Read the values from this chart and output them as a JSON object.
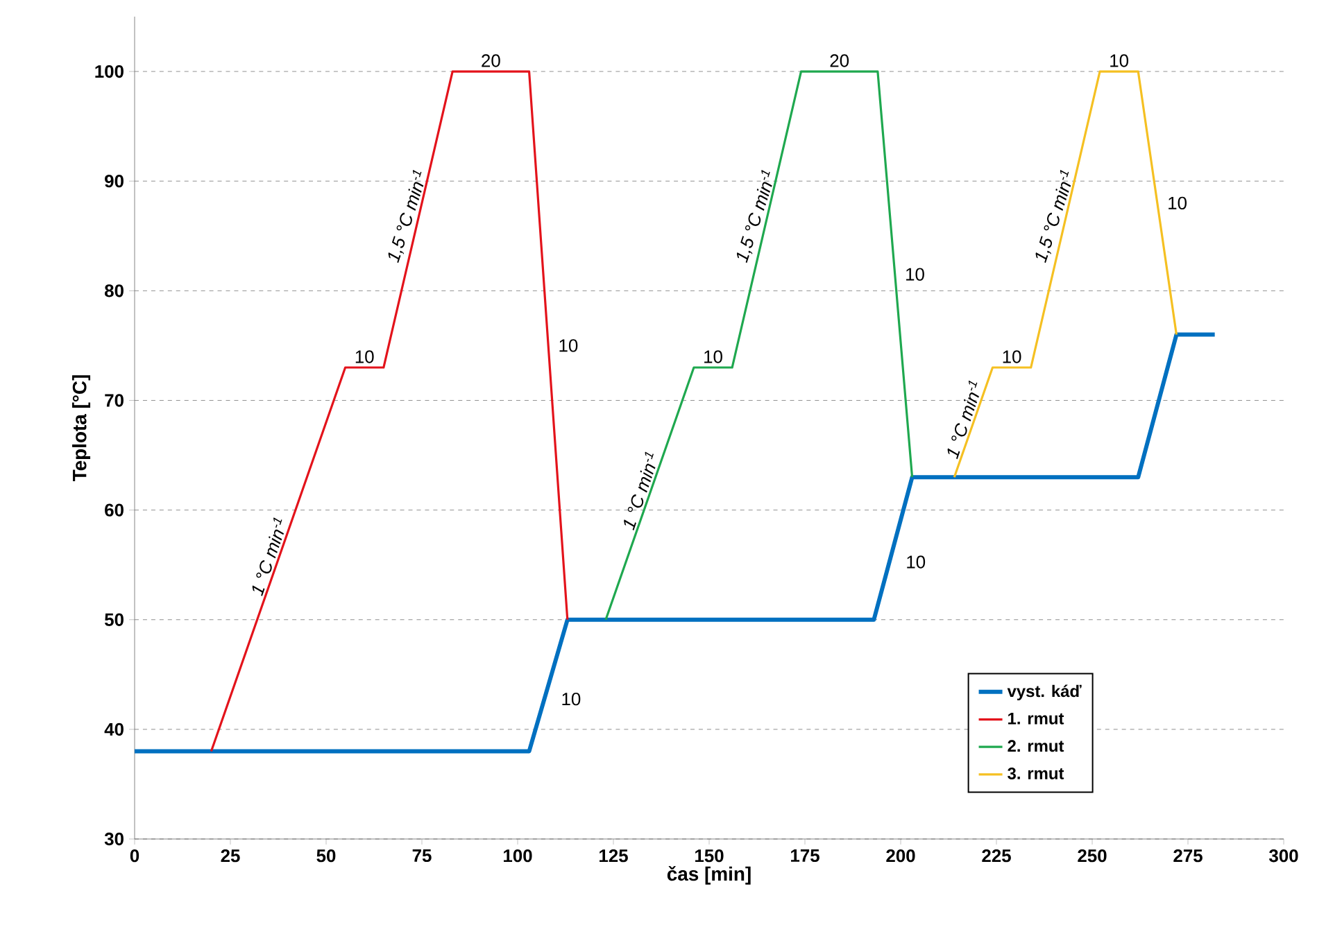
{
  "chart_data": {
    "type": "line",
    "xlabel": "čas [min]",
    "ylabel": "Teplota [°C]",
    "xlim": [
      0,
      300
    ],
    "xticks": [
      0,
      25,
      50,
      75,
      100,
      125,
      150,
      175,
      200,
      225,
      250,
      275,
      300
    ],
    "ylim": [
      30,
      105
    ],
    "yticks": [
      30,
      40,
      50,
      60,
      70,
      80,
      90,
      100
    ],
    "grid": "y",
    "legend": "bottom right",
    "marker": "none",
    "line_style": "solid",
    "series": [
      {
        "name": "vyst. káď",
        "color": "#0070c0",
        "x": [
          0,
          103,
          113,
          193,
          203,
          262,
          272,
          282
        ],
        "values": [
          38,
          38,
          50,
          50,
          63,
          63,
          76,
          76
        ]
      },
      {
        "name": "1. rmut",
        "color": "#e3131b",
        "x": [
          20,
          55,
          65,
          83,
          103,
          113
        ],
        "values": [
          38,
          73,
          73,
          100,
          100,
          50
        ]
      },
      {
        "name": "2. rmut",
        "color": "#1fa84f",
        "x": [
          123,
          146,
          156,
          174,
          194,
          203
        ],
        "values": [
          50,
          73,
          73,
          100,
          100,
          63
        ]
      },
      {
        "name": "3. rmut",
        "color": "#f5c022",
        "x": [
          214,
          224,
          234,
          252,
          262,
          272
        ],
        "values": [
          63,
          73,
          73,
          100,
          100,
          76
        ]
      }
    ],
    "annotations": [
      {
        "text": "1 °C min$^{-1}$",
        "x": 37.5,
        "y": 55.5
      },
      {
        "text": "10",
        "x": 60,
        "y": 73
      },
      {
        "text": "1,5 °C min$^{-1}$",
        "x": 74,
        "y": 86.5
      },
      {
        "text": "20",
        "x": 93,
        "y": 100
      },
      {
        "text": "10",
        "x": 108,
        "y": 75
      },
      {
        "text": "10",
        "x": 108,
        "y": 44
      },
      {
        "text": "1 °C min$^{-1}$",
        "x": 134.5,
        "y": 61.5
      },
      {
        "text": "10",
        "x": 151,
        "y": 73
      },
      {
        "text": "1,5 °C min$^{-1}$",
        "x": 165,
        "y": 86.5
      },
      {
        "text": "20",
        "x": 184,
        "y": 100
      },
      {
        "text": "10",
        "x": 198.5,
        "y": 81.5
      },
      {
        "text": "10",
        "x": 198,
        "y": 56.5
      },
      {
        "text": "1 °C min$^{-1}$",
        "x": 219,
        "y": 68
      },
      {
        "text": "10",
        "x": 229,
        "y": 73
      },
      {
        "text": "1,5 °C min$^{-1}$",
        "x": 243,
        "y": 86.5
      },
      {
        "text": "10",
        "x": 257,
        "y": 100
      },
      {
        "text": "10",
        "x": 267,
        "y": 88
      }
    ]
  }
}
